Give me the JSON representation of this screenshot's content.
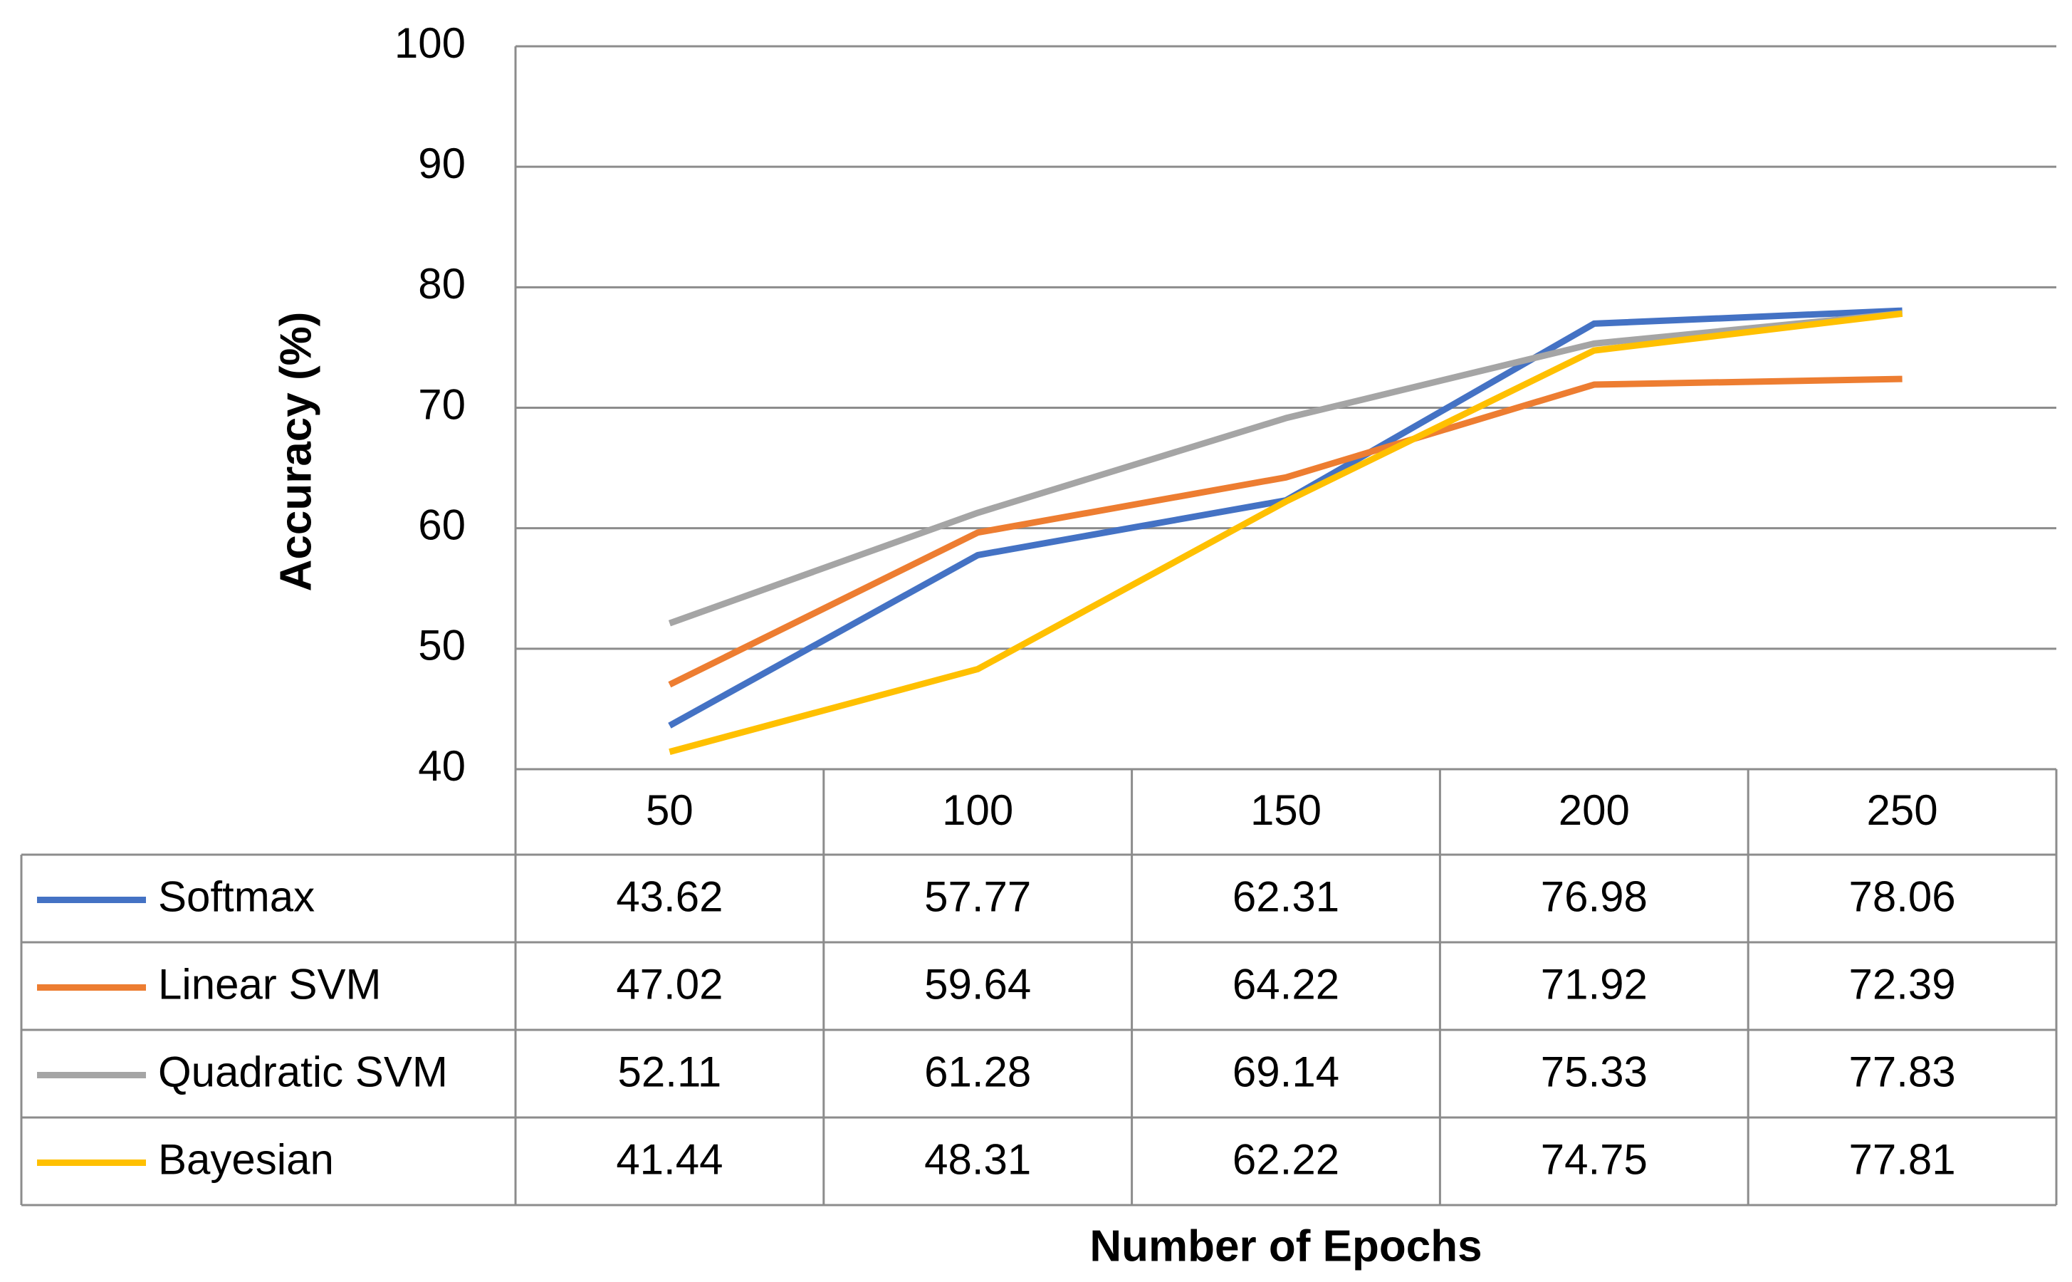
{
  "chart_data": {
    "type": "line",
    "x_label": "Number of Epochs",
    "y_label": "Accuracy (%)",
    "categories": [
      "50",
      "100",
      "150",
      "200",
      "250"
    ],
    "ylim": [
      40,
      100
    ],
    "yticks": [
      40,
      50,
      60,
      70,
      80,
      90,
      100
    ],
    "grid": true,
    "series": [
      {
        "name": "Softmax",
        "color": "#4472c4",
        "values": [
          43.62,
          57.77,
          62.31,
          76.98,
          78.06
        ]
      },
      {
        "name": "Linear SVM",
        "color": "#ed7d31",
        "values": [
          47.02,
          59.64,
          64.22,
          71.92,
          72.39
        ]
      },
      {
        "name": "Quadratic SVM",
        "color": "#a5a5a5",
        "values": [
          52.11,
          61.28,
          69.14,
          75.33,
          77.83
        ]
      },
      {
        "name": "Bayesian",
        "color": "#ffc000",
        "values": [
          41.44,
          48.31,
          62.22,
          74.75,
          77.81
        ]
      }
    ]
  }
}
